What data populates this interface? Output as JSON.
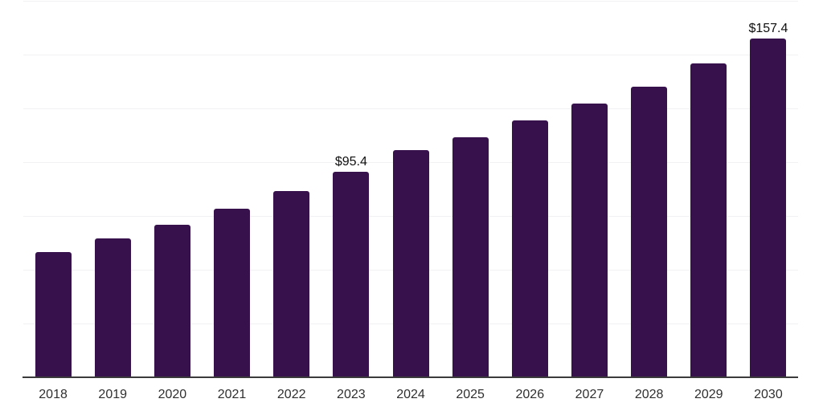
{
  "chart_data": {
    "type": "bar",
    "title": "",
    "xlabel": "",
    "ylabel": "",
    "categories": [
      "2018",
      "2019",
      "2020",
      "2021",
      "2022",
      "2023",
      "2024",
      "2025",
      "2026",
      "2027",
      "2028",
      "2029",
      "2030"
    ],
    "values": [
      58.2,
      64.4,
      70.9,
      78.4,
      86.4,
      95.4,
      105.5,
      111.6,
      119.4,
      127.1,
      135.2,
      145.8,
      157.4
    ],
    "data_labels": [
      {
        "category": "2023",
        "text": "$95.4"
      },
      {
        "category": "2030",
        "text": "$157.4"
      }
    ],
    "value_prefix": "$",
    "ylim": [
      0,
      175
    ],
    "grid_step": 25,
    "grid": "horizontal-only, no y-axis tick labels",
    "legend_position": "none",
    "colors": {
      "bar": "#36114B",
      "gridline": "#f1f1f3",
      "axis": "#3b3b3b",
      "tick_label": "#2f2f2f",
      "data_label": "#0f0f0f",
      "background": "#ffffff"
    }
  }
}
